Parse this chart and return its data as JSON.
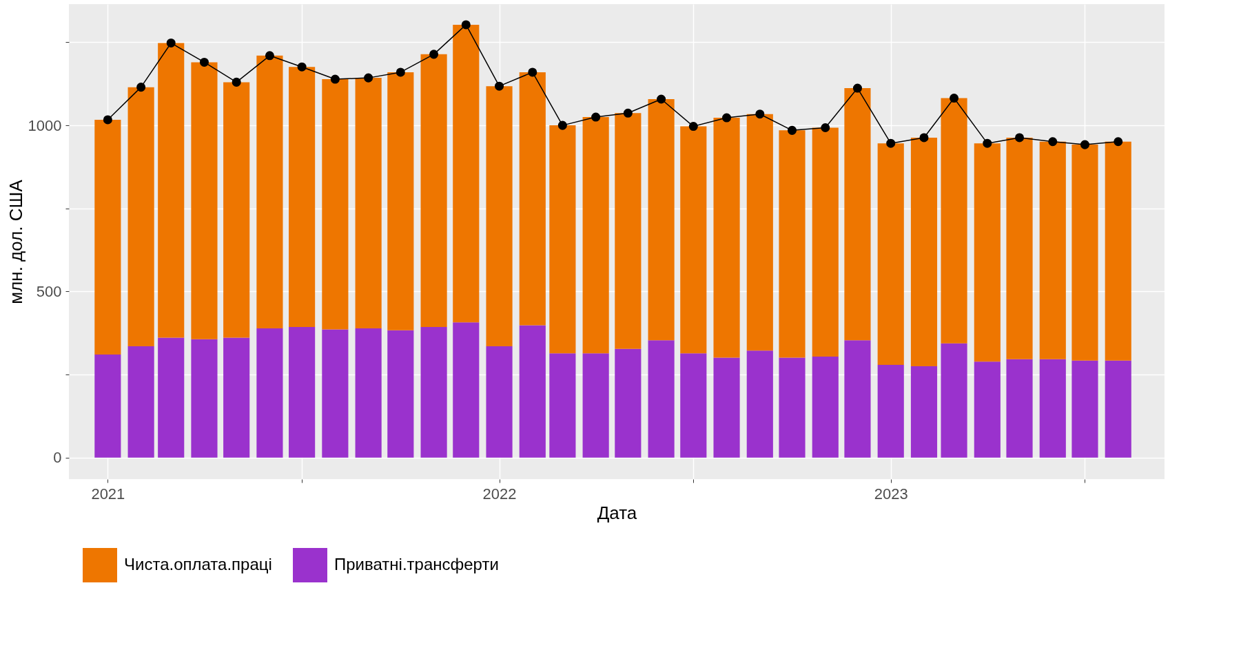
{
  "chart_data": {
    "type": "bar",
    "stacked": true,
    "xlabel": "Дата",
    "ylabel": "млн. дол. США",
    "x": [
      "2021-01",
      "2021-02",
      "2021-03",
      "2021-04",
      "2021-05",
      "2021-06",
      "2021-07",
      "2021-08",
      "2021-09",
      "2021-10",
      "2021-11",
      "2021-12",
      "2022-01",
      "2022-02",
      "2022-03",
      "2022-04",
      "2022-05",
      "2022-06",
      "2022-07",
      "2022-08",
      "2022-09",
      "2022-10",
      "2022-11",
      "2022-12",
      "2023-01",
      "2023-02",
      "2023-03",
      "2023-04",
      "2023-05",
      "2023-06",
      "2023-07",
      "2023-08"
    ],
    "series": [
      {
        "name": "Приватні.трансферти",
        "color": "#9a32cd",
        "values": [
          310,
          335,
          361,
          356,
          361,
          389,
          393,
          386,
          389,
          383,
          393,
          407,
          335,
          398,
          314,
          314,
          327,
          353,
          314,
          301,
          322,
          301,
          304,
          353,
          279,
          275,
          344,
          289,
          296,
          296,
          292,
          292
        ]
      },
      {
        "name": "Чиста.оплата.праці",
        "color": "#ee7600",
        "values": [
          707,
          780,
          887,
          834,
          769,
          821,
          783,
          753,
          754,
          777,
          821,
          896,
          783,
          762,
          686,
          711,
          710,
          726,
          683,
          722,
          712,
          684,
          689,
          759,
          667,
          688,
          738,
          657,
          667,
          655,
          650,
          659
        ]
      },
      {
        "type": "line",
        "color": "#000000",
        "marker": "circle",
        "values": [
          1017,
          1115,
          1248,
          1190,
          1130,
          1210,
          1176,
          1139,
          1143,
          1160,
          1214,
          1303,
          1118,
          1160,
          1000,
          1025,
          1037,
          1079,
          997,
          1023,
          1034,
          985,
          993,
          1112,
          946,
          963,
          1082,
          946,
          963,
          951,
          942,
          951
        ]
      }
    ],
    "xlim": [
      "2020-11-29",
      "2023-09-10"
    ],
    "xticks": [
      {
        "value": "2021-01-01",
        "label": "2021"
      },
      {
        "value": "2021-07-01",
        "label": null
      },
      {
        "value": "2022-01-01",
        "label": "2022"
      },
      {
        "value": "2022-07-01",
        "label": null
      },
      {
        "value": "2023-01-01",
        "label": "2023"
      },
      {
        "value": "2023-07-01",
        "label": null
      }
    ],
    "ylim": [
      -65,
      1365
    ],
    "yticks": [
      0,
      {
        "value": 250,
        "label": null
      },
      500,
      {
        "value": 750,
        "label": null
      },
      1000,
      {
        "value": 1250,
        "label": null
      }
    ],
    "grid": true,
    "legend": "bottom"
  }
}
